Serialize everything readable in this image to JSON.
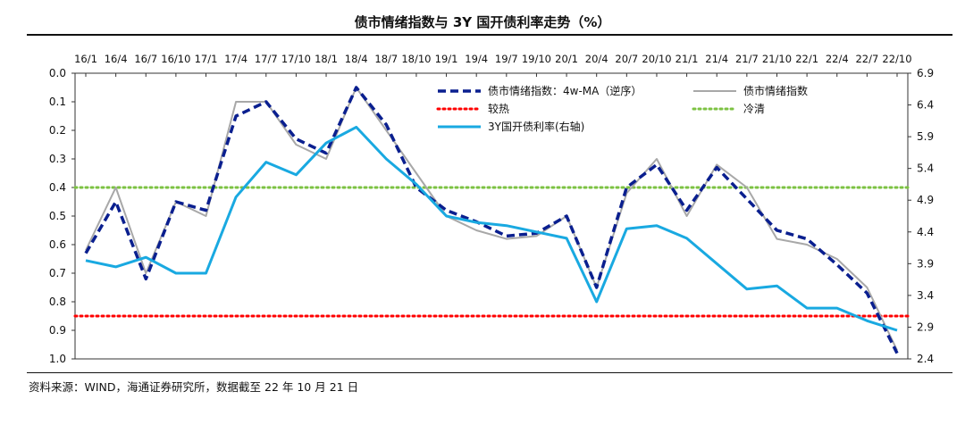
{
  "header": {
    "title": "债市情绪指数与 3Y 国开债利率走势（%）"
  },
  "footer": {
    "source": "资料来源：WIND，海通证券研究所，数据截至 22 年 10 月 21 日"
  },
  "colors": {
    "ma": "#0a1f8f",
    "index": "#a8a8a8",
    "hot": "#ff0000",
    "cold": "#7cc242",
    "yield": "#19a9e1"
  },
  "chart_data": {
    "type": "line",
    "x_labels": [
      "16/1",
      "16/4",
      "16/7",
      "16/10",
      "17/1",
      "17/4",
      "17/7",
      "17/10",
      "18/1",
      "18/4",
      "18/7",
      "18/10",
      "19/1",
      "19/4",
      "19/7",
      "19/10",
      "20/1",
      "20/4",
      "20/7",
      "20/10",
      "21/1",
      "21/4",
      "21/7",
      "21/10",
      "22/1",
      "22/4",
      "22/7",
      "22/10"
    ],
    "left_axis": {
      "ticks": [
        "0.0",
        "0.1",
        "0.2",
        "0.3",
        "0.4",
        "0.5",
        "0.6",
        "0.7",
        "0.8",
        "0.9",
        "1.0"
      ],
      "min": 0.0,
      "max": 1.0,
      "inverted": true
    },
    "right_axis": {
      "ticks": [
        "6.9",
        "6.4",
        "5.9",
        "5.4",
        "4.9",
        "4.4",
        "3.9",
        "3.4",
        "2.9",
        "2.4"
      ],
      "min": 2.4,
      "max": 6.9
    },
    "legend": {
      "ma": "债市情绪指数：4w-MA（逆序）",
      "index": "债市情绪指数",
      "hot": "较热",
      "cold": "冷清",
      "yield": "3Y国开债利率(右轴)"
    },
    "reference_lines": {
      "hot": 0.85,
      "cold": 0.4
    },
    "series": [
      {
        "name": "债市情绪指数",
        "axis": "left",
        "x": [
          0,
          1,
          2,
          3,
          4,
          5,
          6,
          7,
          8,
          9,
          10,
          11,
          12,
          13,
          14,
          15,
          16,
          17,
          18,
          19,
          20,
          21,
          22,
          23,
          24,
          25,
          26,
          27
        ],
        "values": [
          0.62,
          0.4,
          0.7,
          0.45,
          0.5,
          0.1,
          0.1,
          0.25,
          0.3,
          0.05,
          0.2,
          0.35,
          0.5,
          0.55,
          0.58,
          0.57,
          0.5,
          0.75,
          0.42,
          0.3,
          0.5,
          0.32,
          0.4,
          0.58,
          0.6,
          0.65,
          0.75,
          0.97
        ]
      },
      {
        "name": "债市情绪指数：4w-MA（逆序）",
        "axis": "left",
        "x": [
          0,
          1,
          2,
          3,
          4,
          5,
          6,
          7,
          8,
          9,
          10,
          11,
          12,
          13,
          14,
          15,
          16,
          17,
          18,
          19,
          20,
          21,
          22,
          23,
          24,
          25,
          26,
          27
        ],
        "values": [
          0.63,
          0.45,
          0.72,
          0.45,
          0.48,
          0.15,
          0.1,
          0.23,
          0.28,
          0.05,
          0.18,
          0.4,
          0.48,
          0.52,
          0.57,
          0.56,
          0.5,
          0.75,
          0.4,
          0.32,
          0.48,
          0.33,
          0.44,
          0.55,
          0.58,
          0.67,
          0.77,
          0.98
        ]
      },
      {
        "name": "3Y国开债利率(右轴)",
        "axis": "right",
        "x": [
          0,
          1,
          2,
          3,
          4,
          5,
          6,
          7,
          8,
          9,
          10,
          11,
          12,
          13,
          14,
          15,
          16,
          17,
          18,
          19,
          20,
          21,
          22,
          23,
          24,
          25,
          26,
          27
        ],
        "values": [
          3.95,
          3.85,
          4.0,
          3.75,
          3.75,
          4.95,
          5.5,
          5.3,
          5.8,
          6.05,
          5.55,
          5.15,
          4.65,
          4.55,
          4.5,
          4.4,
          4.3,
          3.3,
          4.45,
          4.5,
          4.3,
          3.9,
          3.5,
          3.55,
          3.2,
          3.2,
          3.0,
          2.85
        ]
      }
    ]
  }
}
